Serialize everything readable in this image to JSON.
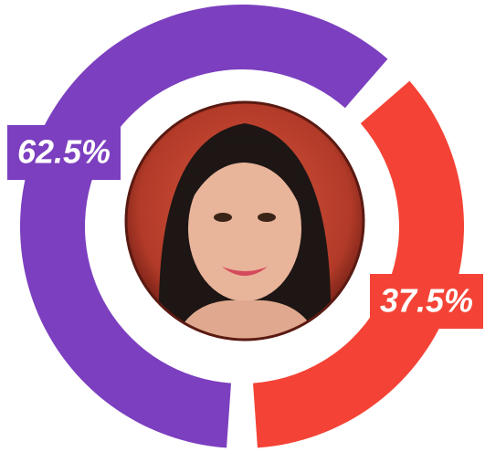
{
  "chart_data": {
    "type": "donut",
    "values": [
      62.5,
      37.5
    ],
    "value_labels": [
      "62.5%",
      "37.5%"
    ],
    "colors": [
      "#7b3fbf",
      "#f44336"
    ]
  }
}
